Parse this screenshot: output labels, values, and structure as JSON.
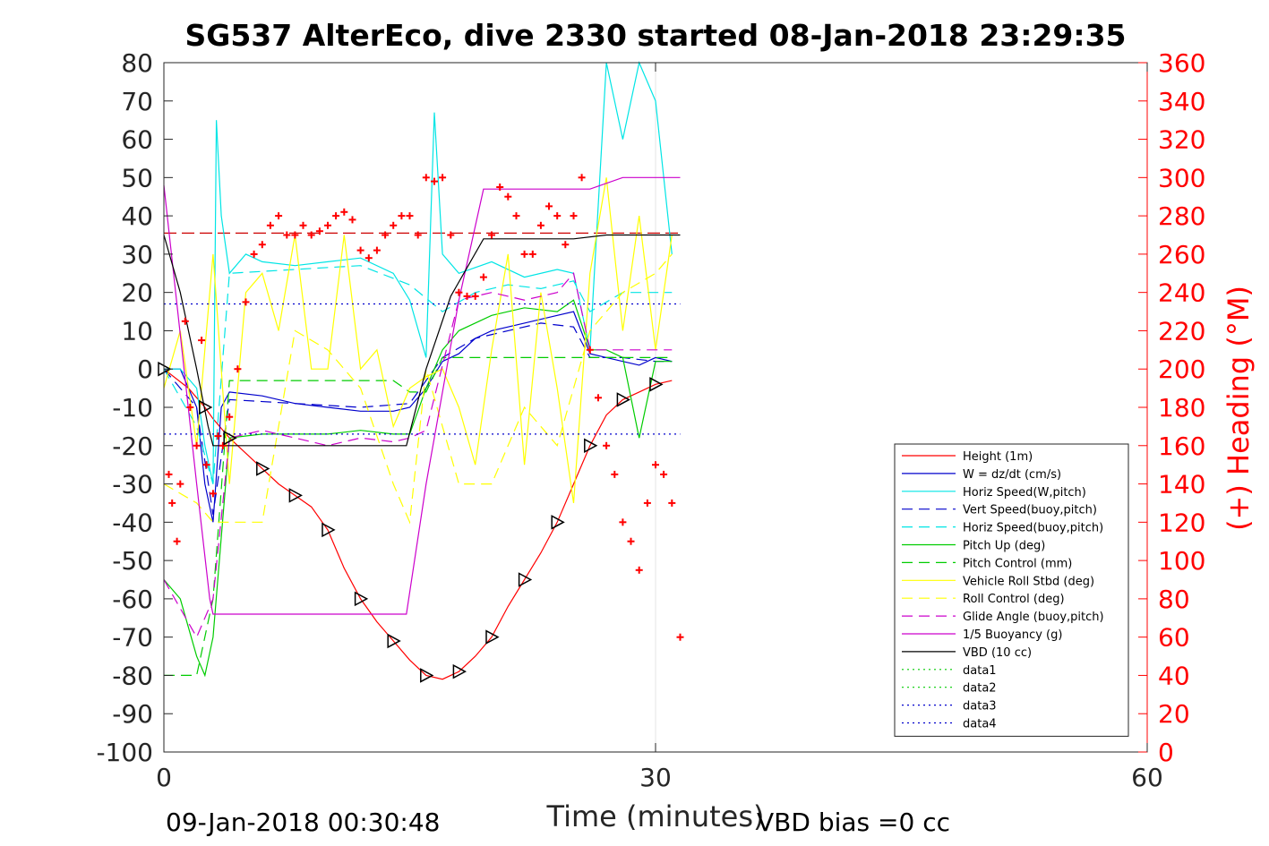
{
  "chart_data": {
    "type": "line",
    "title": "SG537 AlterEco, dive 2330 started 08-Jan-2018 23:29:35",
    "xlabel": "Time (minutes)",
    "ylabel_right": "(+) Heading (°M)",
    "footer_left": "09-Jan-2018 00:30:48",
    "footer_right": "VBD bias =0 cc",
    "xlim": [
      0,
      60
    ],
    "ylim_left": [
      -100,
      80
    ],
    "ylim_right": [
      0,
      360
    ],
    "xticks": [
      0,
      30,
      60
    ],
    "yticks_left": [
      80,
      70,
      60,
      50,
      40,
      30,
      20,
      10,
      0,
      -10,
      -20,
      -30,
      -40,
      -50,
      -60,
      -70,
      -80,
      -90,
      -100
    ],
    "yticks_right": [
      360,
      340,
      320,
      300,
      280,
      260,
      240,
      220,
      200,
      180,
      160,
      140,
      120,
      100,
      80,
      60,
      40,
      20,
      0
    ],
    "grid_x": [
      30
    ],
    "legend_position": "bottom-right",
    "colors": {
      "heading_axis": "#ff0000",
      "heading_marker": "#ff0000"
    },
    "series": [
      {
        "name": "Height (1m)",
        "color": "#ff0000",
        "style": "solid",
        "x": [
          0,
          1.5,
          2.5,
          3,
          4,
          5,
          6,
          7,
          8,
          9,
          10,
          11,
          12,
          13,
          14,
          15,
          16,
          17,
          18,
          19,
          20,
          21,
          22,
          23,
          24,
          25,
          26,
          27,
          28,
          29,
          30,
          31
        ],
        "values": [
          0,
          -5,
          -10,
          -13,
          -18,
          -22,
          -26,
          -30,
          -33,
          -36,
          -42,
          -52,
          -60,
          -66,
          -71,
          -76,
          -80,
          -81,
          -79,
          -75,
          -70,
          -62,
          -55,
          -48,
          -40,
          -30,
          -20,
          -12,
          -8,
          -6,
          -4,
          -3
        ]
      },
      {
        "name": "W = dz/dt (cm/s)",
        "color": "#0000cc",
        "style": "solid",
        "x": [
          0,
          1,
          2,
          2.5,
          3,
          3.5,
          4,
          6,
          8,
          10,
          12,
          14,
          15,
          16,
          17,
          18,
          19,
          20,
          22,
          24,
          25,
          26,
          27,
          28,
          29,
          30,
          31
        ],
        "values": [
          0,
          0,
          -10,
          -30,
          -40,
          -10,
          -6,
          -7,
          -9,
          -10,
          -11,
          -11,
          -10,
          -5,
          2,
          4,
          8,
          10,
          12,
          14,
          15,
          4,
          3,
          2,
          1,
          3,
          2
        ]
      },
      {
        "name": "Horiz Speed(W,pitch)",
        "color": "#00e5e5",
        "style": "solid",
        "x": [
          0,
          1,
          2,
          2.5,
          3,
          3.2,
          3.5,
          4,
          5,
          6,
          8,
          10,
          12,
          14,
          15,
          16,
          16.5,
          17,
          18,
          20,
          22,
          24,
          25,
          26,
          27,
          28,
          29,
          30,
          31
        ],
        "values": [
          0,
          0,
          -5,
          -20,
          -30,
          65,
          40,
          25,
          30,
          28,
          27,
          28,
          29,
          25,
          18,
          3,
          67,
          30,
          25,
          28,
          24,
          26,
          25,
          5,
          80,
          60,
          80,
          70,
          30
        ]
      },
      {
        "name": "Vert Speed(buoy,pitch)",
        "color": "#0000cc",
        "style": "dashed",
        "x": [
          0,
          2,
          3,
          4,
          8,
          12,
          15,
          17,
          19,
          21,
          23,
          25,
          26,
          28,
          30,
          31
        ],
        "values": [
          0,
          -10,
          -38,
          -8,
          -9,
          -10,
          -9,
          3,
          8,
          10,
          12,
          11,
          3,
          3,
          2,
          2
        ]
      },
      {
        "name": "Horiz Speed(buoy,pitch)",
        "color": "#00e5e5",
        "style": "dashed",
        "x": [
          0,
          2,
          3,
          4,
          8,
          12,
          15,
          17,
          19,
          21,
          23,
          25,
          26,
          28,
          30,
          31
        ],
        "values": [
          0,
          -15,
          -30,
          25,
          26,
          27,
          22,
          15,
          20,
          22,
          21,
          23,
          15,
          20,
          20,
          20
        ]
      },
      {
        "name": "Pitch Up (deg)",
        "color": "#00cc00",
        "style": "solid",
        "x": [
          0,
          1,
          2,
          2.5,
          3,
          4,
          6,
          8,
          10,
          12,
          14,
          15,
          16,
          17,
          18,
          20,
          22,
          24,
          25,
          26,
          27,
          28,
          29,
          30,
          31
        ],
        "values": [
          -55,
          -60,
          -75,
          -80,
          -70,
          -18,
          -17,
          -17,
          -17,
          -16,
          -17,
          -17,
          -5,
          5,
          10,
          14,
          16,
          15,
          18,
          5,
          5,
          3,
          -18,
          2,
          2
        ]
      },
      {
        "name": "Pitch Control (mm)",
        "color": "#00cc00",
        "style": "dashed",
        "x": [
          0,
          2,
          3,
          4,
          14,
          15,
          16,
          17,
          18,
          25,
          26,
          31
        ],
        "values": [
          -80,
          -80,
          -60,
          -3,
          -3,
          -6,
          -6,
          3,
          3,
          3,
          3,
          3
        ]
      },
      {
        "name": "Vehicle Roll Stbd (deg)",
        "color": "#ffff00",
        "style": "solid",
        "x": [
          0,
          1,
          2,
          3,
          4,
          5,
          6,
          7,
          8,
          9,
          10,
          11,
          12,
          13,
          14,
          15,
          16,
          17,
          18,
          19,
          20,
          21,
          22,
          23,
          24,
          25,
          26,
          27,
          28,
          29,
          30,
          31
        ],
        "values": [
          -5,
          10,
          -20,
          30,
          -30,
          20,
          25,
          10,
          35,
          0,
          0,
          35,
          0,
          5,
          -15,
          -5,
          -2,
          0,
          -10,
          -25,
          5,
          30,
          -25,
          20,
          -5,
          -35,
          25,
          50,
          10,
          40,
          5,
          35
        ]
      },
      {
        "name": "Roll Control (deg)",
        "color": "#ffff00",
        "style": "dashed",
        "x": [
          0,
          2,
          3,
          4,
          6,
          8,
          10,
          12,
          14,
          15,
          16,
          18,
          20,
          22,
          24,
          26,
          28,
          30,
          31
        ],
        "values": [
          -30,
          -35,
          -40,
          -40,
          -40,
          10,
          5,
          -5,
          -30,
          -40,
          0,
          -30,
          -30,
          -10,
          -20,
          10,
          20,
          25,
          30
        ]
      },
      {
        "name": "Glide Angle (buoy,pitch)",
        "color": "#cc00cc",
        "style": "dashed",
        "x": [
          0,
          2,
          3,
          4,
          6,
          8,
          10,
          12,
          14,
          15,
          16,
          18,
          20,
          22,
          24,
          25,
          26,
          28,
          30,
          31
        ],
        "values": [
          -55,
          -70,
          -60,
          -18,
          -16,
          -18,
          -20,
          -18,
          -19,
          -18,
          -16,
          18,
          20,
          18,
          20,
          25,
          5,
          5,
          5,
          5
        ]
      },
      {
        "name": "1/5 Buoyancy (g)",
        "color": "#cc00cc",
        "style": "solid",
        "x": [
          0,
          2,
          2.8,
          3,
          8,
          12,
          14.8,
          16,
          18,
          19.5,
          22,
          25,
          26,
          28,
          30,
          31.5
        ],
        "values": [
          48,
          -30,
          -60,
          -64,
          -64,
          -64,
          -64,
          -30,
          18,
          47,
          47,
          47,
          47,
          50,
          50,
          50
        ]
      },
      {
        "name": "VBD (10 cc)",
        "color": "#000000",
        "style": "solid",
        "x": [
          0,
          1,
          2,
          2.7,
          3,
          8,
          12,
          14.8,
          16,
          17.5,
          19.5,
          22,
          25,
          27,
          28,
          30,
          31.5
        ],
        "values": [
          35,
          20,
          0,
          -15,
          -20,
          -20,
          -20,
          -20,
          0,
          19,
          34,
          34,
          34,
          35,
          35,
          35,
          35
        ]
      },
      {
        "name": "data1",
        "color": "#00cc00",
        "style": "dotted",
        "x": [],
        "values": []
      },
      {
        "name": "data2",
        "color": "#00cc00",
        "style": "dotted",
        "x": [],
        "values": []
      },
      {
        "name": "data3",
        "color": "#0000cc",
        "style": "dotted",
        "x": [
          0,
          31.5
        ],
        "values": [
          -17,
          -17
        ]
      },
      {
        "name": "data4",
        "color": "#0000cc",
        "style": "dotted",
        "x": [
          0,
          31.5
        ],
        "values": [
          17,
          17
        ]
      }
    ],
    "reference_line": {
      "y": 35.5,
      "color": "#cc0000",
      "style": "dashed",
      "x": [
        0,
        31.5
      ]
    },
    "heading": {
      "x": [
        0.3,
        0.5,
        0.8,
        1.0,
        1.3,
        1.6,
        2.0,
        2.3,
        2.6,
        3.0,
        3.3,
        3.6,
        4.0,
        4.5,
        5.0,
        5.5,
        6.0,
        6.5,
        7.0,
        7.5,
        8.0,
        8.5,
        9.0,
        9.5,
        10.0,
        10.5,
        11.0,
        11.5,
        12.0,
        12.5,
        13.0,
        13.5,
        14.0,
        14.5,
        15.0,
        15.5,
        16.0,
        16.5,
        17.0,
        17.5,
        18.0,
        18.5,
        19.0,
        19.5,
        20.0,
        20.5,
        21.0,
        21.5,
        22.0,
        22.5,
        23.0,
        23.5,
        24.0,
        24.5,
        25.0,
        25.5,
        26.0,
        26.5,
        27.0,
        27.5,
        28.0,
        28.5,
        29.0,
        29.5,
        30.0,
        30.5,
        31.0,
        31.5
      ],
      "values": [
        145,
        130,
        110,
        140,
        225,
        180,
        160,
        215,
        150,
        135,
        165,
        160,
        175,
        200,
        235,
        260,
        265,
        275,
        280,
        270,
        270,
        275,
        270,
        272,
        275,
        280,
        282,
        278,
        262,
        258,
        262,
        270,
        275,
        280,
        280,
        270,
        300,
        298,
        300,
        270,
        240,
        238,
        238,
        248,
        270,
        295,
        290,
        280,
        260,
        260,
        275,
        285,
        280,
        265,
        280,
        300,
        210,
        185,
        160,
        145,
        120,
        110,
        95,
        130,
        150,
        145,
        130,
        60
      ]
    }
  },
  "legend": {
    "entries": [
      {
        "label": "Height (1m)",
        "color": "#ff0000",
        "style": "solid"
      },
      {
        "label": "W = dz/dt (cm/s)",
        "color": "#0000cc",
        "style": "solid"
      },
      {
        "label": "Horiz Speed(W,pitch)",
        "color": "#00e5e5",
        "style": "solid"
      },
      {
        "label": "Vert Speed(buoy,pitch)",
        "color": "#0000cc",
        "style": "dashed"
      },
      {
        "label": "Horiz Speed(buoy,pitch)",
        "color": "#00e5e5",
        "style": "dashed"
      },
      {
        "label": "Pitch Up (deg)",
        "color": "#00cc00",
        "style": "solid"
      },
      {
        "label": "Pitch Control (mm)",
        "color": "#00cc00",
        "style": "dashed"
      },
      {
        "label": "Vehicle Roll Stbd (deg)",
        "color": "#ffff00",
        "style": "solid"
      },
      {
        "label": "Roll Control (deg)",
        "color": "#ffff00",
        "style": "dashed"
      },
      {
        "label": "Glide Angle (buoy,pitch)",
        "color": "#cc00cc",
        "style": "dashed"
      },
      {
        "label": "1/5 Buoyancy (g)",
        "color": "#cc00cc",
        "style": "solid"
      },
      {
        "label": "VBD (10 cc)",
        "color": "#000000",
        "style": "solid"
      },
      {
        "label": "data1",
        "color": "#00cc00",
        "style": "dotted"
      },
      {
        "label": "data2",
        "color": "#00cc00",
        "style": "dotted"
      },
      {
        "label": "data3",
        "color": "#0000cc",
        "style": "dotted"
      },
      {
        "label": "data4",
        "color": "#0000cc",
        "style": "dotted"
      }
    ]
  }
}
